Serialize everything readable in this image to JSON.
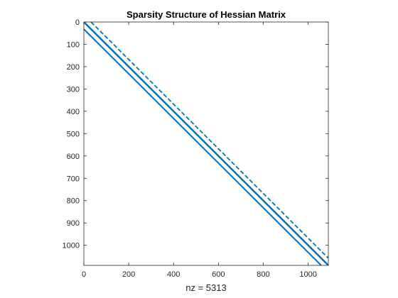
{
  "chart_data": {
    "type": "scatter",
    "title": "Sparsity Structure of Hessian Matrix",
    "xlabel": "nz = 5313",
    "ylabel": "",
    "matrix_size": 1090,
    "xlim": [
      0,
      1090
    ],
    "ylim": [
      0,
      1090
    ],
    "y_reversed": true,
    "xticks": [
      0,
      200,
      400,
      600,
      800,
      1000
    ],
    "yticks": [
      0,
      100,
      200,
      300,
      400,
      500,
      600,
      700,
      800,
      900,
      1000
    ],
    "grid": false,
    "series": [
      {
        "diagonal_offset": 32,
        "style": "dashed"
      },
      {
        "diagonal_offset": 1,
        "style": "solid"
      },
      {
        "diagonal_offset": 0,
        "style": "solid"
      },
      {
        "diagonal_offset": -1,
        "style": "solid"
      },
      {
        "diagonal_offset": -32,
        "style": "solid"
      }
    ],
    "colors": {
      "series": "#0072BD",
      "axis": "#262626"
    }
  }
}
